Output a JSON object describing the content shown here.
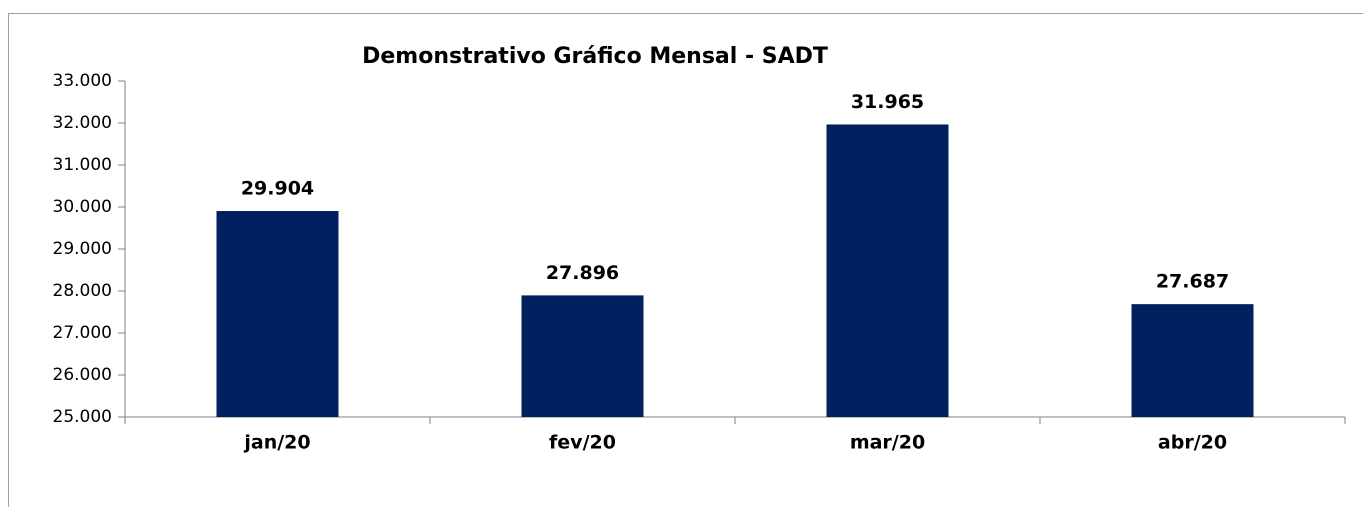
{
  "chart_data": {
    "type": "bar",
    "title": "Demonstrativo Gráfico Mensal - SADT",
    "categories": [
      "jan/20",
      "fev/20",
      "mar/20",
      "abr/20"
    ],
    "values": [
      29904,
      27896,
      31965,
      27687
    ],
    "value_labels": [
      "29.904",
      "27.896",
      "31.965",
      "27.687"
    ],
    "color": "#002060",
    "ylim": [
      25000,
      33000
    ],
    "yticks": [
      {
        "value": 25000,
        "label": "25.000"
      },
      {
        "value": 26000,
        "label": "26.000"
      },
      {
        "value": 27000,
        "label": "27.000"
      },
      {
        "value": 28000,
        "label": "28.000"
      },
      {
        "value": 29000,
        "label": "29.000"
      },
      {
        "value": 30000,
        "label": "30.000"
      },
      {
        "value": 31000,
        "label": "31.000"
      },
      {
        "value": 32000,
        "label": "32.000"
      },
      {
        "value": 33000,
        "label": "33.000"
      }
    ],
    "grid": false
  }
}
